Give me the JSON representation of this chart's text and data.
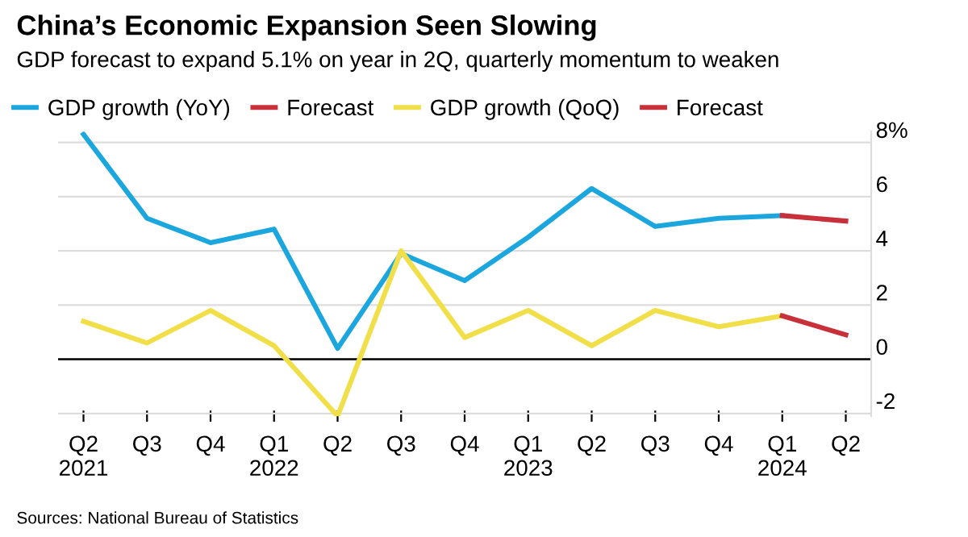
{
  "chart_data": {
    "type": "line",
    "title": "China’s Economic Expansion Seen Slowing",
    "subtitle": "GDP forecast to expand 5.1% on year in 2Q, quarterly momentum to weaken",
    "categories": [
      "Q2\n2021",
      "Q3",
      "Q4",
      "Q1\n2022",
      "Q2",
      "Q3",
      "Q4",
      "Q1\n2023",
      "Q2",
      "Q3",
      "Q4",
      "Q1\n2024",
      "Q2"
    ],
    "series": [
      {
        "name": "GDP growth (YoY)",
        "color": "#1ba6de",
        "values": [
          8.3,
          5.2,
          4.3,
          4.8,
          0.4,
          3.9,
          2.9,
          4.5,
          6.3,
          4.9,
          5.2,
          5.3,
          null
        ]
      },
      {
        "name": "Forecast",
        "color": "#c8303a",
        "values": [
          null,
          null,
          null,
          null,
          null,
          null,
          null,
          null,
          null,
          null,
          null,
          5.3,
          5.1
        ]
      },
      {
        "name": "GDP growth (QoQ)",
        "color": "#f1df4a",
        "values": [
          1.4,
          0.6,
          1.8,
          0.5,
          -2.1,
          4.0,
          0.8,
          1.8,
          0.5,
          1.8,
          1.2,
          1.6,
          null
        ]
      },
      {
        "name": "Forecast",
        "color": "#c8303a",
        "values": [
          null,
          null,
          null,
          null,
          null,
          null,
          null,
          null,
          null,
          null,
          null,
          1.6,
          0.9
        ]
      }
    ],
    "ylim": [
      -2.1,
      8.4
    ],
    "yticks": [
      -2,
      0,
      2,
      4,
      6,
      {
        "value": 8,
        "label": "8%"
      }
    ],
    "grid": "y",
    "legend": "top left",
    "marker": "none",
    "line_style": "solid",
    "ref_lines": [
      {
        "axis": "y",
        "value": 0,
        "label": null,
        "color": "#000000"
      }
    ],
    "annotations": [
      "Sources: National Bureau of Statistics"
    ]
  }
}
